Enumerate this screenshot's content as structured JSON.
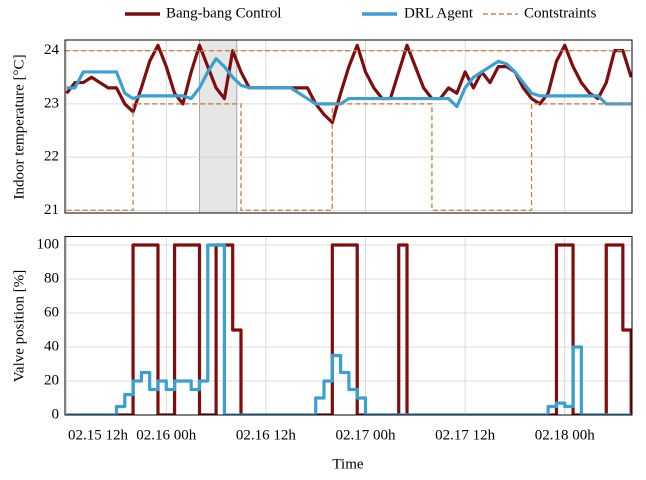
{
  "chart_data": [
    {
      "type": "line",
      "ylabel": "Indoor temperature [°C]",
      "x": [
        12,
        13,
        14,
        15,
        16,
        17,
        18,
        19,
        20,
        21,
        22,
        23,
        24,
        25,
        26,
        27,
        28,
        29,
        30,
        31,
        32,
        33,
        34,
        35,
        36,
        37,
        38,
        39,
        40,
        41,
        42,
        43,
        44,
        45,
        46,
        47,
        48,
        49,
        50,
        51,
        52,
        53,
        54,
        55,
        56,
        57,
        58,
        59,
        60,
        61,
        62,
        63,
        64,
        65,
        66,
        67,
        68,
        69,
        70,
        71,
        72,
        73,
        74,
        75,
        76,
        77,
        78,
        79,
        80
      ],
      "xlim": [
        11.8,
        80.1
      ],
      "xticks": [
        12,
        24,
        36,
        48,
        60,
        72
      ],
      "ylim": [
        20.95,
        24.2
      ],
      "yticks": [
        21,
        22,
        23,
        24
      ],
      "grid": true,
      "highlight": [
        28,
        32.5
      ],
      "series": [
        {
          "name": "Bang-bang Control",
          "color": "#7f0d0d",
          "values": [
            23.2,
            23.4,
            23.4,
            23.5,
            23.4,
            23.3,
            23.3,
            23.0,
            22.85,
            23.3,
            23.8,
            24.1,
            23.7,
            23.2,
            23.0,
            23.6,
            24.1,
            23.7,
            23.3,
            23.1,
            24.0,
            23.6,
            23.3,
            23.3,
            23.3,
            23.3,
            23.3,
            23.3,
            23.3,
            23.3,
            23.0,
            22.8,
            22.65,
            23.2,
            23.7,
            24.1,
            23.6,
            23.3,
            23.1,
            23.1,
            23.6,
            24.1,
            23.7,
            23.3,
            23.1,
            23.1,
            23.3,
            23.2,
            23.6,
            23.3,
            23.6,
            23.4,
            23.7,
            23.7,
            23.6,
            23.3,
            23.1,
            23.0,
            23.2,
            23.8,
            24.1,
            23.7,
            23.4,
            23.2,
            23.1,
            23.4,
            24.0,
            24.0,
            23.5
          ]
        },
        {
          "name": "DRL Agent",
          "color": "#3a9fd1",
          "values": [
            23.3,
            23.3,
            23.6,
            23.6,
            23.6,
            23.6,
            23.6,
            23.2,
            23.1,
            23.15,
            23.15,
            23.15,
            23.15,
            23.15,
            23.15,
            23.1,
            23.3,
            23.6,
            23.85,
            23.7,
            23.5,
            23.35,
            23.3,
            23.3,
            23.3,
            23.3,
            23.3,
            23.3,
            23.2,
            23.1,
            23.0,
            23.0,
            23.0,
            23.0,
            23.1,
            23.1,
            23.1,
            23.1,
            23.1,
            23.1,
            23.1,
            23.1,
            23.1,
            23.1,
            23.1,
            23.1,
            23.1,
            22.95,
            23.3,
            23.5,
            23.6,
            23.7,
            23.8,
            23.75,
            23.6,
            23.4,
            23.2,
            23.15,
            23.15,
            23.15,
            23.15,
            23.15,
            23.15,
            23.15,
            23.15,
            23.0,
            23.0,
            23.0,
            23.0
          ]
        },
        {
          "name": "Contstraints",
          "color": "#c8874a",
          "dash": true,
          "step": true,
          "upper": 24,
          "values": [
            21,
            21,
            21,
            21,
            21,
            21,
            21,
            21,
            23,
            23,
            23,
            23,
            23,
            23,
            23,
            23,
            23,
            23,
            23,
            23,
            23,
            21,
            21,
            21,
            21,
            21,
            21,
            21,
            21,
            21,
            21,
            21,
            23,
            23,
            23,
            23,
            23,
            23,
            23,
            23,
            23,
            23,
            23,
            23,
            21,
            21,
            21,
            21,
            21,
            21,
            21,
            21,
            21,
            21,
            21,
            21,
            23,
            23,
            23,
            23,
            23,
            23,
            23,
            23,
            23,
            23,
            23,
            23,
            23
          ]
        }
      ]
    },
    {
      "type": "line",
      "ylabel": "Valve position [%]",
      "xlabel": "Time",
      "x": [
        12,
        13,
        14,
        15,
        16,
        17,
        18,
        19,
        20,
        21,
        22,
        23,
        24,
        25,
        26,
        27,
        28,
        29,
        30,
        31,
        32,
        33,
        34,
        35,
        36,
        37,
        38,
        39,
        40,
        41,
        42,
        43,
        44,
        45,
        46,
        47,
        48,
        49,
        50,
        51,
        52,
        53,
        54,
        55,
        56,
        57,
        58,
        59,
        60,
        61,
        62,
        63,
        64,
        65,
        66,
        67,
        68,
        69,
        70,
        71,
        72,
        73,
        74,
        75,
        76,
        77,
        78,
        79,
        80
      ],
      "xlim": [
        11.8,
        80.1
      ],
      "xticks": [
        {
          "value": 12,
          "label": "02.15 12h"
        },
        {
          "value": 24,
          "label": "02.16 00h"
        },
        {
          "value": 36,
          "label": "02.16 12h"
        },
        {
          "value": 48,
          "label": "02.17 00h"
        },
        {
          "value": 60,
          "label": "02.17 12h"
        },
        {
          "value": 72,
          "label": "02.18 00h"
        }
      ],
      "ylim": [
        0,
        105
      ],
      "yticks": [
        0,
        20,
        40,
        60,
        80,
        100
      ],
      "grid": true,
      "series": [
        {
          "color": "#7f0d0d",
          "step": true,
          "values": [
            0,
            0,
            0,
            0,
            0,
            0,
            0,
            0,
            100,
            100,
            100,
            0,
            0,
            100,
            100,
            100,
            0,
            0,
            100,
            100,
            50,
            0,
            0,
            0,
            0,
            0,
            0,
            0,
            0,
            0,
            0,
            0,
            100,
            100,
            100,
            0,
            0,
            0,
            0,
            0,
            100,
            0,
            0,
            0,
            0,
            0,
            0,
            0,
            0,
            0,
            0,
            0,
            0,
            0,
            0,
            0,
            0,
            0,
            0,
            100,
            100,
            0,
            0,
            0,
            0,
            100,
            100,
            50,
            0
          ]
        },
        {
          "color": "#3a9fd1",
          "step": true,
          "values": [
            0,
            0,
            0,
            0,
            0,
            0,
            5,
            12,
            20,
            25,
            15,
            20,
            15,
            20,
            20,
            15,
            20,
            100,
            100,
            0,
            0,
            0,
            0,
            0,
            0,
            0,
            0,
            0,
            0,
            0,
            10,
            20,
            35,
            25,
            15,
            10,
            0,
            0,
            0,
            0,
            0,
            0,
            0,
            0,
            0,
            0,
            0,
            0,
            0,
            0,
            0,
            0,
            0,
            0,
            0,
            0,
            0,
            0,
            5,
            7,
            5,
            40,
            0,
            0,
            0,
            0,
            0,
            0,
            0
          ]
        }
      ]
    }
  ]
}
